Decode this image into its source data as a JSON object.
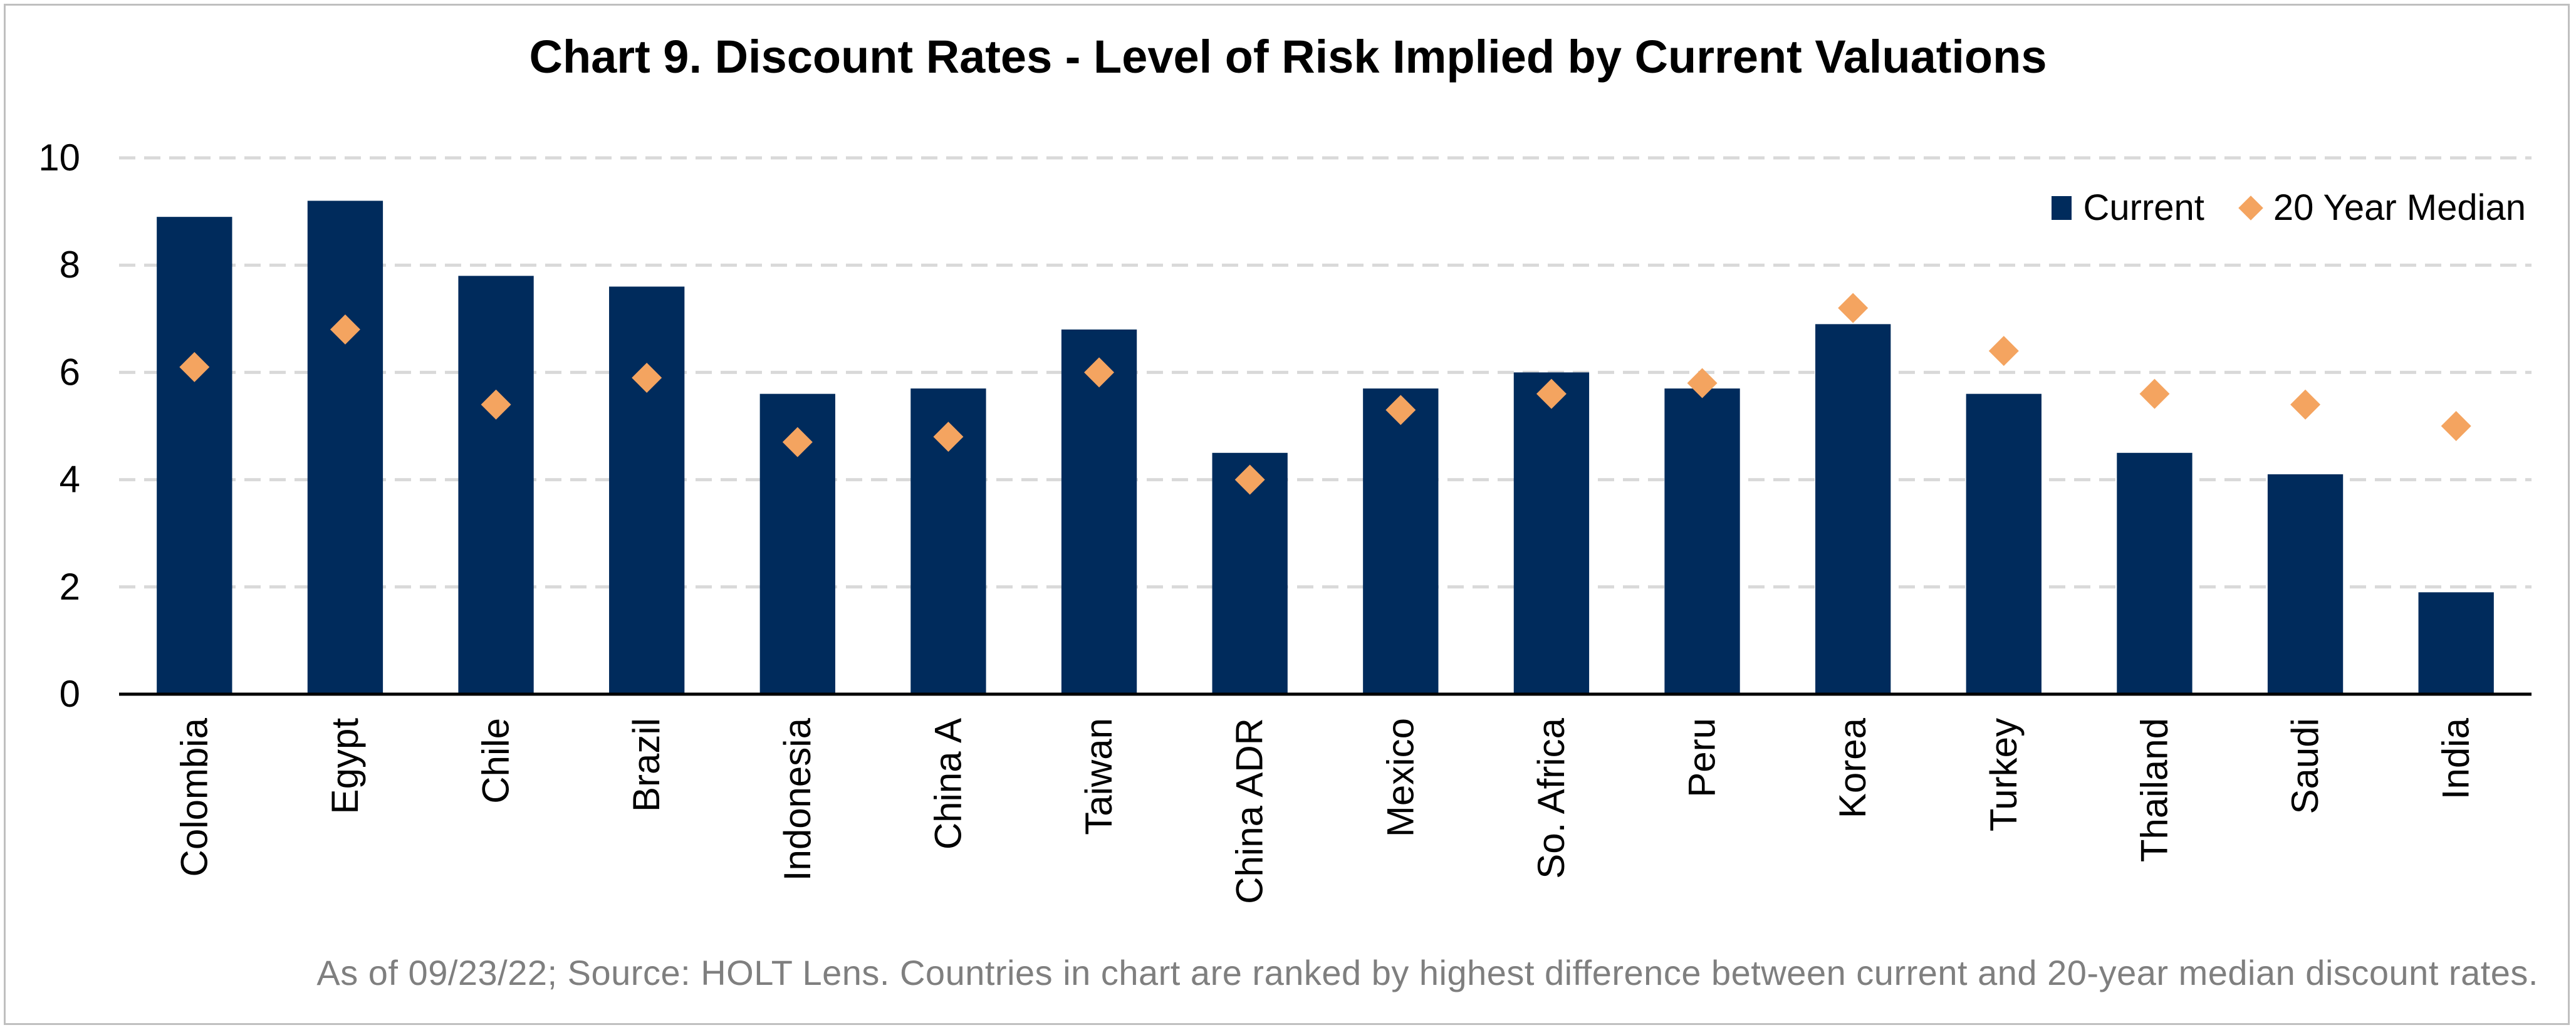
{
  "title": "Chart 9. Discount Rates - Level of Risk Implied by Current Valuations",
  "footnote": "As of 09/23/22; Source: HOLT Lens. Countries in chart are ranked by highest difference between current and 20-year median discount rates.",
  "colors": {
    "current": "#002b5c",
    "median": "#f4a460",
    "grid": "#d9d9d9",
    "axis": "#000000"
  },
  "legend": {
    "current_label": "Current",
    "median_label": "20 Year Median"
  },
  "chart_data": {
    "type": "bar",
    "categories": [
      "Colombia",
      "Egypt",
      "Chile",
      "Brazil",
      "Indonesia",
      "China A",
      "Taiwan",
      "China ADR",
      "Mexico",
      "So. Africa",
      "Peru",
      "Korea",
      "Turkey",
      "Thailand",
      "Saudi",
      "India"
    ],
    "series": [
      {
        "name": "Current",
        "type": "bar",
        "values": [
          8.9,
          9.2,
          7.8,
          7.6,
          5.6,
          5.7,
          6.8,
          4.5,
          5.7,
          6.0,
          5.7,
          6.9,
          5.6,
          4.5,
          4.1,
          1.9
        ]
      },
      {
        "name": "20 Year Median",
        "type": "scatter",
        "marker": "diamond",
        "values": [
          6.1,
          6.8,
          5.4,
          5.9,
          4.7,
          4.8,
          6.0,
          4.0,
          5.3,
          5.6,
          5.8,
          7.2,
          6.4,
          5.6,
          5.4,
          5.0
        ]
      }
    ],
    "yticks": [
      0,
      2,
      4,
      6,
      8,
      10
    ],
    "ylim": [
      0,
      10
    ],
    "grid": true,
    "legend_position": "top-right"
  }
}
